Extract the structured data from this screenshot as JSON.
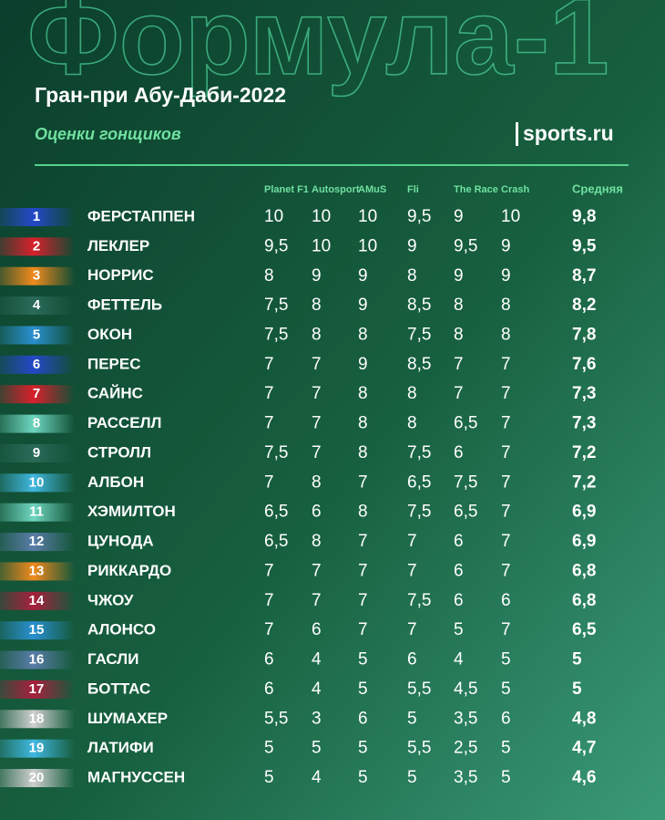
{
  "header": {
    "title": "Формула-1",
    "subtitle": "Гран-при Абу-Даби-2022",
    "caption": "Оценки гонщиков",
    "logo": "sports.ru"
  },
  "table": {
    "columns": [
      "Planet F1",
      "Autosport",
      "AMuS",
      "Fli",
      "The Race",
      "Crash"
    ],
    "average_label": "Средняя",
    "rows": [
      {
        "pos": 1,
        "name": "ФЕРСТАППЕН",
        "color": "#2348c8",
        "scores": [
          "10",
          "10",
          "10",
          "9,5",
          "9",
          "10"
        ],
        "average": "9,8"
      },
      {
        "pos": 2,
        "name": "ЛЕКЛЕР",
        "color": "#d8202c",
        "scores": [
          "9,5",
          "10",
          "10",
          "9",
          "9,5",
          "9"
        ],
        "average": "9,5"
      },
      {
        "pos": 3,
        "name": "НОРРИС",
        "color": "#f08a1c",
        "scores": [
          "8",
          "9",
          "9",
          "8",
          "9",
          "9"
        ],
        "average": "8,7"
      },
      {
        "pos": 4,
        "name": "ФЕТТЕЛЬ",
        "color": "#2a6a58",
        "scores": [
          "7,5",
          "8",
          "9",
          "8,5",
          "8",
          "8"
        ],
        "average": "8,2"
      },
      {
        "pos": 5,
        "name": "ОКОН",
        "color": "#2a90d0",
        "scores": [
          "7,5",
          "8",
          "8",
          "7,5",
          "8",
          "8"
        ],
        "average": "7,8"
      },
      {
        "pos": 6,
        "name": "ПЕРЕС",
        "color": "#2348c8",
        "scores": [
          "7",
          "7",
          "9",
          "8,5",
          "7",
          "7"
        ],
        "average": "7,6"
      },
      {
        "pos": 7,
        "name": "САЙНС",
        "color": "#d8202c",
        "scores": [
          "7",
          "7",
          "8",
          "8",
          "7",
          "7"
        ],
        "average": "7,3"
      },
      {
        "pos": 8,
        "name": "РАССЕЛЛ",
        "color": "#6fd6c0",
        "scores": [
          "7",
          "7",
          "8",
          "8",
          "6,5",
          "7"
        ],
        "average": "7,3"
      },
      {
        "pos": 9,
        "name": "СТРОЛЛ",
        "color": "#2a6a58",
        "scores": [
          "7,5",
          "7",
          "8",
          "7,5",
          "6",
          "7"
        ],
        "average": "7,2"
      },
      {
        "pos": 10,
        "name": "АЛБОН",
        "color": "#40b8e0",
        "scores": [
          "7",
          "8",
          "7",
          "6,5",
          "7,5",
          "7"
        ],
        "average": "7,2"
      },
      {
        "pos": 11,
        "name": "ХЭМИЛТОН",
        "color": "#6fd6c0",
        "scores": [
          "6,5",
          "6",
          "8",
          "7,5",
          "6,5",
          "7"
        ],
        "average": "6,9"
      },
      {
        "pos": 12,
        "name": "ЦУНОДА",
        "color": "#5a7ca8",
        "scores": [
          "6,5",
          "8",
          "7",
          "7",
          "6",
          "7"
        ],
        "average": "6,9"
      },
      {
        "pos": 13,
        "name": "РИККАРДО",
        "color": "#f08a1c",
        "scores": [
          "7",
          "7",
          "7",
          "7",
          "6",
          "7"
        ],
        "average": "6,8"
      },
      {
        "pos": 14,
        "name": "ЧЖОУ",
        "color": "#a8203c",
        "scores": [
          "7",
          "7",
          "7",
          "7,5",
          "6",
          "6"
        ],
        "average": "6,8"
      },
      {
        "pos": 15,
        "name": "АЛОНСО",
        "color": "#2a90d0",
        "scores": [
          "7",
          "6",
          "7",
          "7",
          "5",
          "7"
        ],
        "average": "6,5"
      },
      {
        "pos": 16,
        "name": "ГАСЛИ",
        "color": "#5a7ca8",
        "scores": [
          "6",
          "4",
          "5",
          "6",
          "4",
          "5"
        ],
        "average": "5"
      },
      {
        "pos": 17,
        "name": "БОТТАС",
        "color": "#a8203c",
        "scores": [
          "6",
          "4",
          "5",
          "5,5",
          "4,5",
          "5"
        ],
        "average": "5"
      },
      {
        "pos": 18,
        "name": "ШУМАХЕР",
        "color": "#cfcfcf",
        "scores": [
          "5,5",
          "3",
          "6",
          "5",
          "3,5",
          "6"
        ],
        "average": "4,8"
      },
      {
        "pos": 19,
        "name": "ЛАТИФИ",
        "color": "#40b8e0",
        "scores": [
          "5",
          "5",
          "5",
          "5,5",
          "2,5",
          "5"
        ],
        "average": "4,7"
      },
      {
        "pos": 20,
        "name": "МАГНУССЕН",
        "color": "#cfcfcf",
        "scores": [
          "5",
          "4",
          "5",
          "5",
          "3,5",
          "5"
        ],
        "average": "4,6"
      }
    ]
  }
}
